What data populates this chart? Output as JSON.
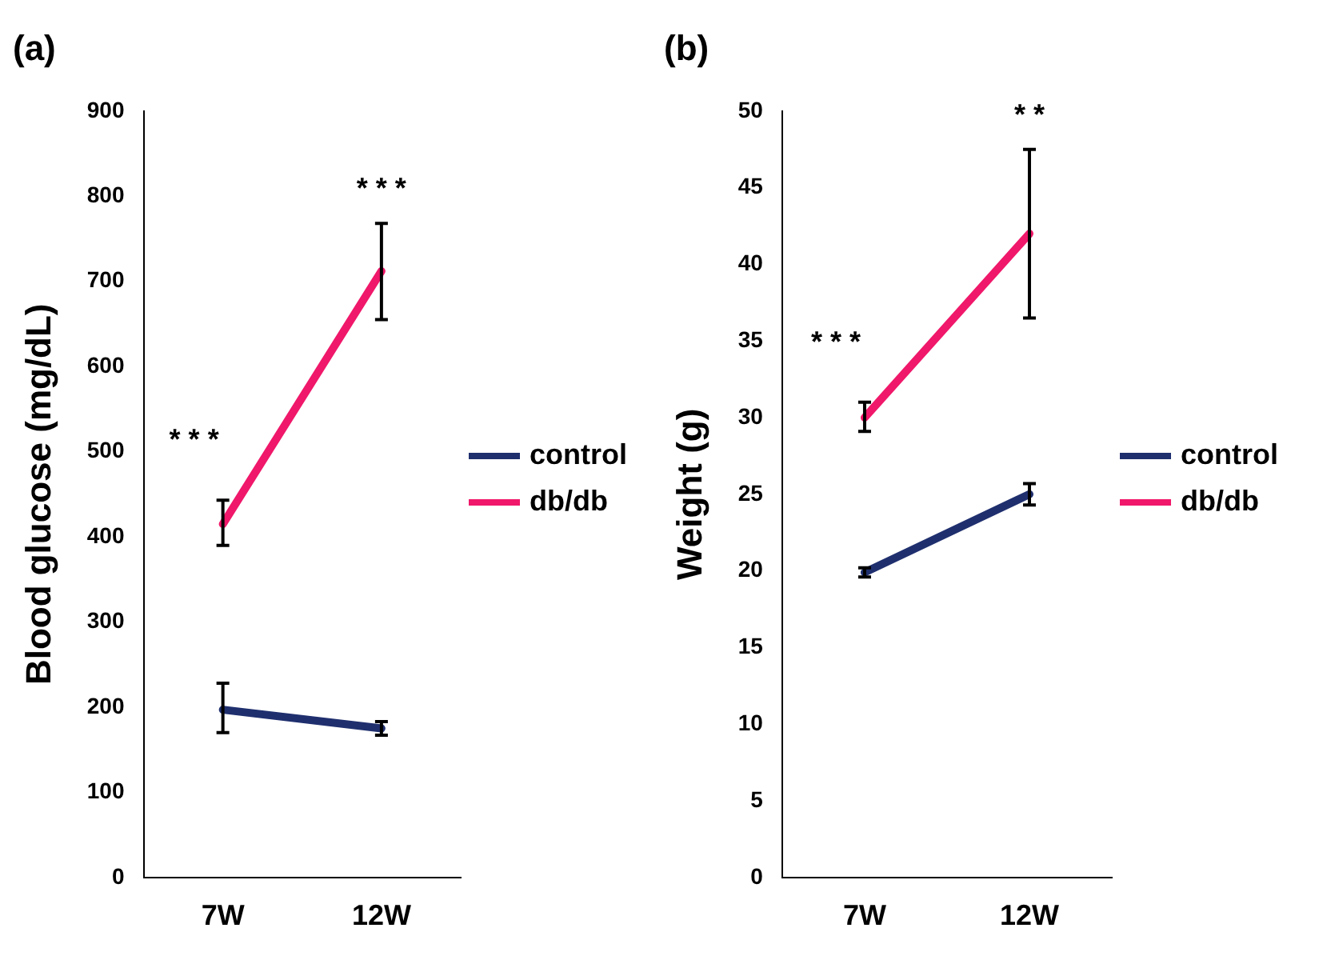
{
  "chart_data": [
    {
      "type": "line",
      "title": "(a)",
      "ylabel": "Blood glucose (mg/dL)",
      "categories": [
        "7W",
        "12W"
      ],
      "series": [
        {
          "name": "control",
          "color": "#1f2f6e",
          "values": [
            197,
            175
          ],
          "errors": [
            [
              170,
              228
            ],
            [
              167,
              183
            ]
          ]
        },
        {
          "name": "db/db",
          "color": "#f0186a",
          "values": [
            415,
            712
          ],
          "errors": [
            [
              390,
              443
            ],
            [
              655,
              768
            ]
          ]
        }
      ],
      "ylim": [
        0,
        900
      ],
      "yticks": [
        0,
        100,
        200,
        300,
        400,
        500,
        600,
        700,
        800,
        900
      ],
      "grid": false,
      "legend": "right",
      "line_style": "solid",
      "annotations": [
        "* * *",
        "* * *"
      ]
    },
    {
      "type": "line",
      "title": "(b)",
      "ylabel": "Weight (g)",
      "categories": [
        "7W",
        "12W"
      ],
      "series": [
        {
          "name": "control",
          "color": "#1f2f6e",
          "values": [
            19.9,
            25
          ],
          "errors": [
            [
              19.6,
              20.2
            ],
            [
              24.3,
              25.7
            ]
          ]
        },
        {
          "name": "db/db",
          "color": "#f0186a",
          "values": [
            30,
            42
          ],
          "errors": [
            [
              29.1,
              31
            ],
            [
              36.5,
              47.5
            ]
          ]
        }
      ],
      "ylim": [
        0,
        50
      ],
      "yticks": [
        0,
        5,
        10,
        15,
        20,
        25,
        30,
        35,
        40,
        45,
        50
      ],
      "grid": false,
      "legend": "right",
      "line_style": "solid",
      "annotations": [
        "* * *",
        "* *"
      ]
    }
  ]
}
